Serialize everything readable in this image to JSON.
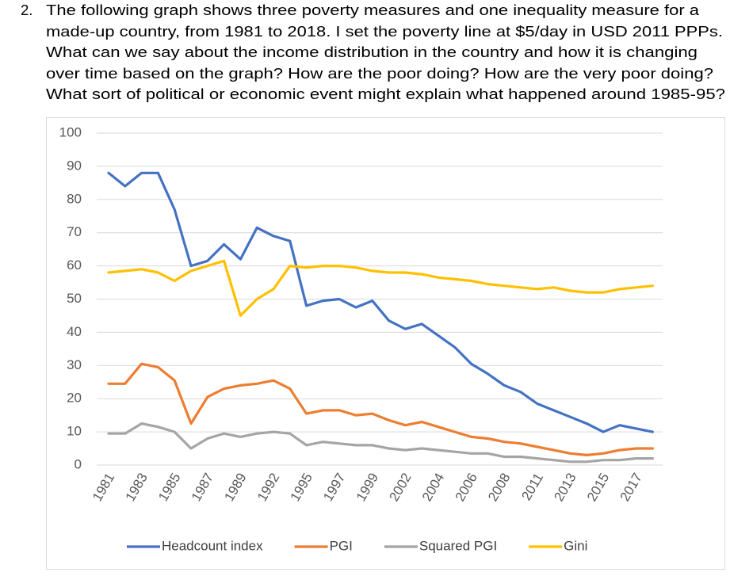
{
  "question": {
    "number": "2.",
    "lines": [
      "The following graph shows three poverty measures and one inequality measure for a",
      "made-up country, from 1981 to 2018. I set the poverty line at $5/day in USD 2011 PPPs.",
      "What can we say about the income distribution in the country and how it is changing",
      "over time based on the graph? How are the poor doing? How are the very poor doing?",
      "What sort of political or economic event might explain what happened around 1985-95?"
    ]
  },
  "chart_data": {
    "type": "line",
    "categories": [
      "1981",
      null,
      "1983",
      null,
      "1985",
      null,
      "1987",
      null,
      "1989",
      null,
      "1992",
      null,
      "1995",
      null,
      "1997",
      null,
      "1999",
      null,
      "2002",
      null,
      "2004",
      null,
      "2006",
      null,
      "2008",
      null,
      "2011",
      null,
      "2013",
      null,
      "2015",
      null,
      "2017",
      null
    ],
    "series": [
      {
        "name": "Headcount index",
        "color": "#4472c4",
        "values": [
          88,
          84,
          88,
          88,
          77,
          60,
          61.5,
          66.5,
          62,
          71.5,
          69,
          67.5,
          48,
          49.5,
          50,
          47.5,
          49.5,
          43.5,
          41,
          42.5,
          39,
          35.5,
          30.5,
          27.5,
          24,
          22,
          18.5,
          16.5,
          14.5,
          12.5,
          10,
          12,
          11,
          10
        ]
      },
      {
        "name": "PGI",
        "color": "#ed7d31",
        "values": [
          24.5,
          24.5,
          30.5,
          29.5,
          25.5,
          12.5,
          20.5,
          23,
          24,
          24.5,
          25.5,
          23,
          15.5,
          16.5,
          16.5,
          15,
          15.5,
          13.5,
          12,
          13,
          11.5,
          10,
          8.5,
          8,
          7,
          6.5,
          5.5,
          4.5,
          3.5,
          3,
          3.5,
          4.5,
          5,
          5
        ]
      },
      {
        "name": "Squared PGI",
        "color": "#a5a5a5",
        "values": [
          9.5,
          9.5,
          12.5,
          11.5,
          10,
          5,
          8,
          9.5,
          8.5,
          9.5,
          10,
          9.5,
          6,
          7,
          6.5,
          6,
          6,
          5,
          4.5,
          5,
          4.5,
          4,
          3.5,
          3.5,
          2.5,
          2.5,
          2,
          1.5,
          1,
          1,
          1.5,
          1.5,
          2,
          2
        ]
      },
      {
        "name": "Gini",
        "color": "#ffc000",
        "values": [
          58,
          58.5,
          59,
          58,
          55.5,
          58.5,
          60,
          61.5,
          45,
          50,
          53,
          60,
          59.5,
          60,
          60,
          59.5,
          58.5,
          58,
          58,
          57.5,
          56.5,
          56,
          55.5,
          54.5,
          54,
          53.5,
          53,
          53.5,
          52.5,
          52,
          52,
          53,
          53.5,
          54
        ]
      }
    ],
    "ylim": [
      0,
      100
    ],
    "yticks": [
      0,
      10,
      20,
      30,
      40,
      50,
      60,
      70,
      80,
      90,
      100
    ],
    "grid": true,
    "legend": "bottom"
  }
}
